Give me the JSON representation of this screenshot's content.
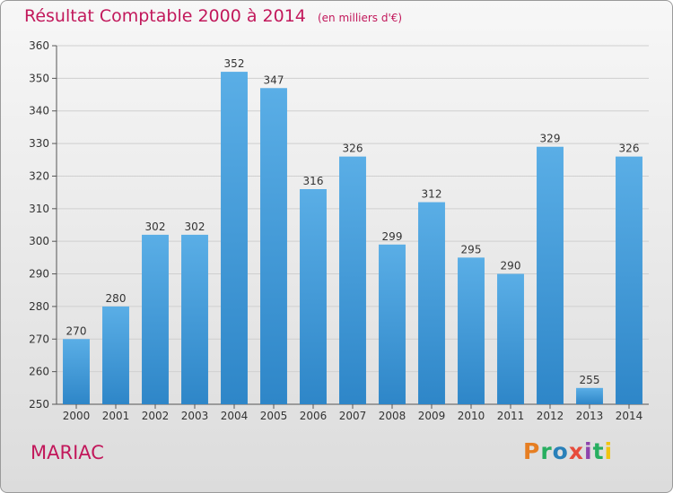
{
  "chart_data": {
    "type": "bar",
    "title": "Résultat Comptable 2000 à 2014",
    "subtitle": "(en milliers d'€)",
    "categories": [
      "2000",
      "2001",
      "2002",
      "2003",
      "2004",
      "2005",
      "2006",
      "2007",
      "2008",
      "2009",
      "2010",
      "2011",
      "2012",
      "2013",
      "2014"
    ],
    "values": [
      270,
      280,
      302,
      302,
      352,
      347,
      316,
      326,
      299,
      312,
      295,
      290,
      329,
      255,
      326
    ],
    "ylim": [
      250,
      360
    ],
    "yticks": [
      250,
      260,
      270,
      280,
      290,
      300,
      310,
      320,
      330,
      340,
      350,
      360
    ],
    "grid": true,
    "xlabel": "",
    "ylabel": "",
    "bar_color": "#2e86c8",
    "bar_highlight": "#5aaee6"
  },
  "footer": {
    "commune": "MARIAC",
    "logo_text": "Proxiti",
    "logo_colors": [
      "#e67e22",
      "#27ae60",
      "#2980b9",
      "#e74c3c",
      "#8e44ad",
      "#27ae60",
      "#f1c40f"
    ]
  },
  "colors": {
    "title": "#c2185b",
    "grid": "#cfcfcf",
    "axis": "#555555"
  }
}
